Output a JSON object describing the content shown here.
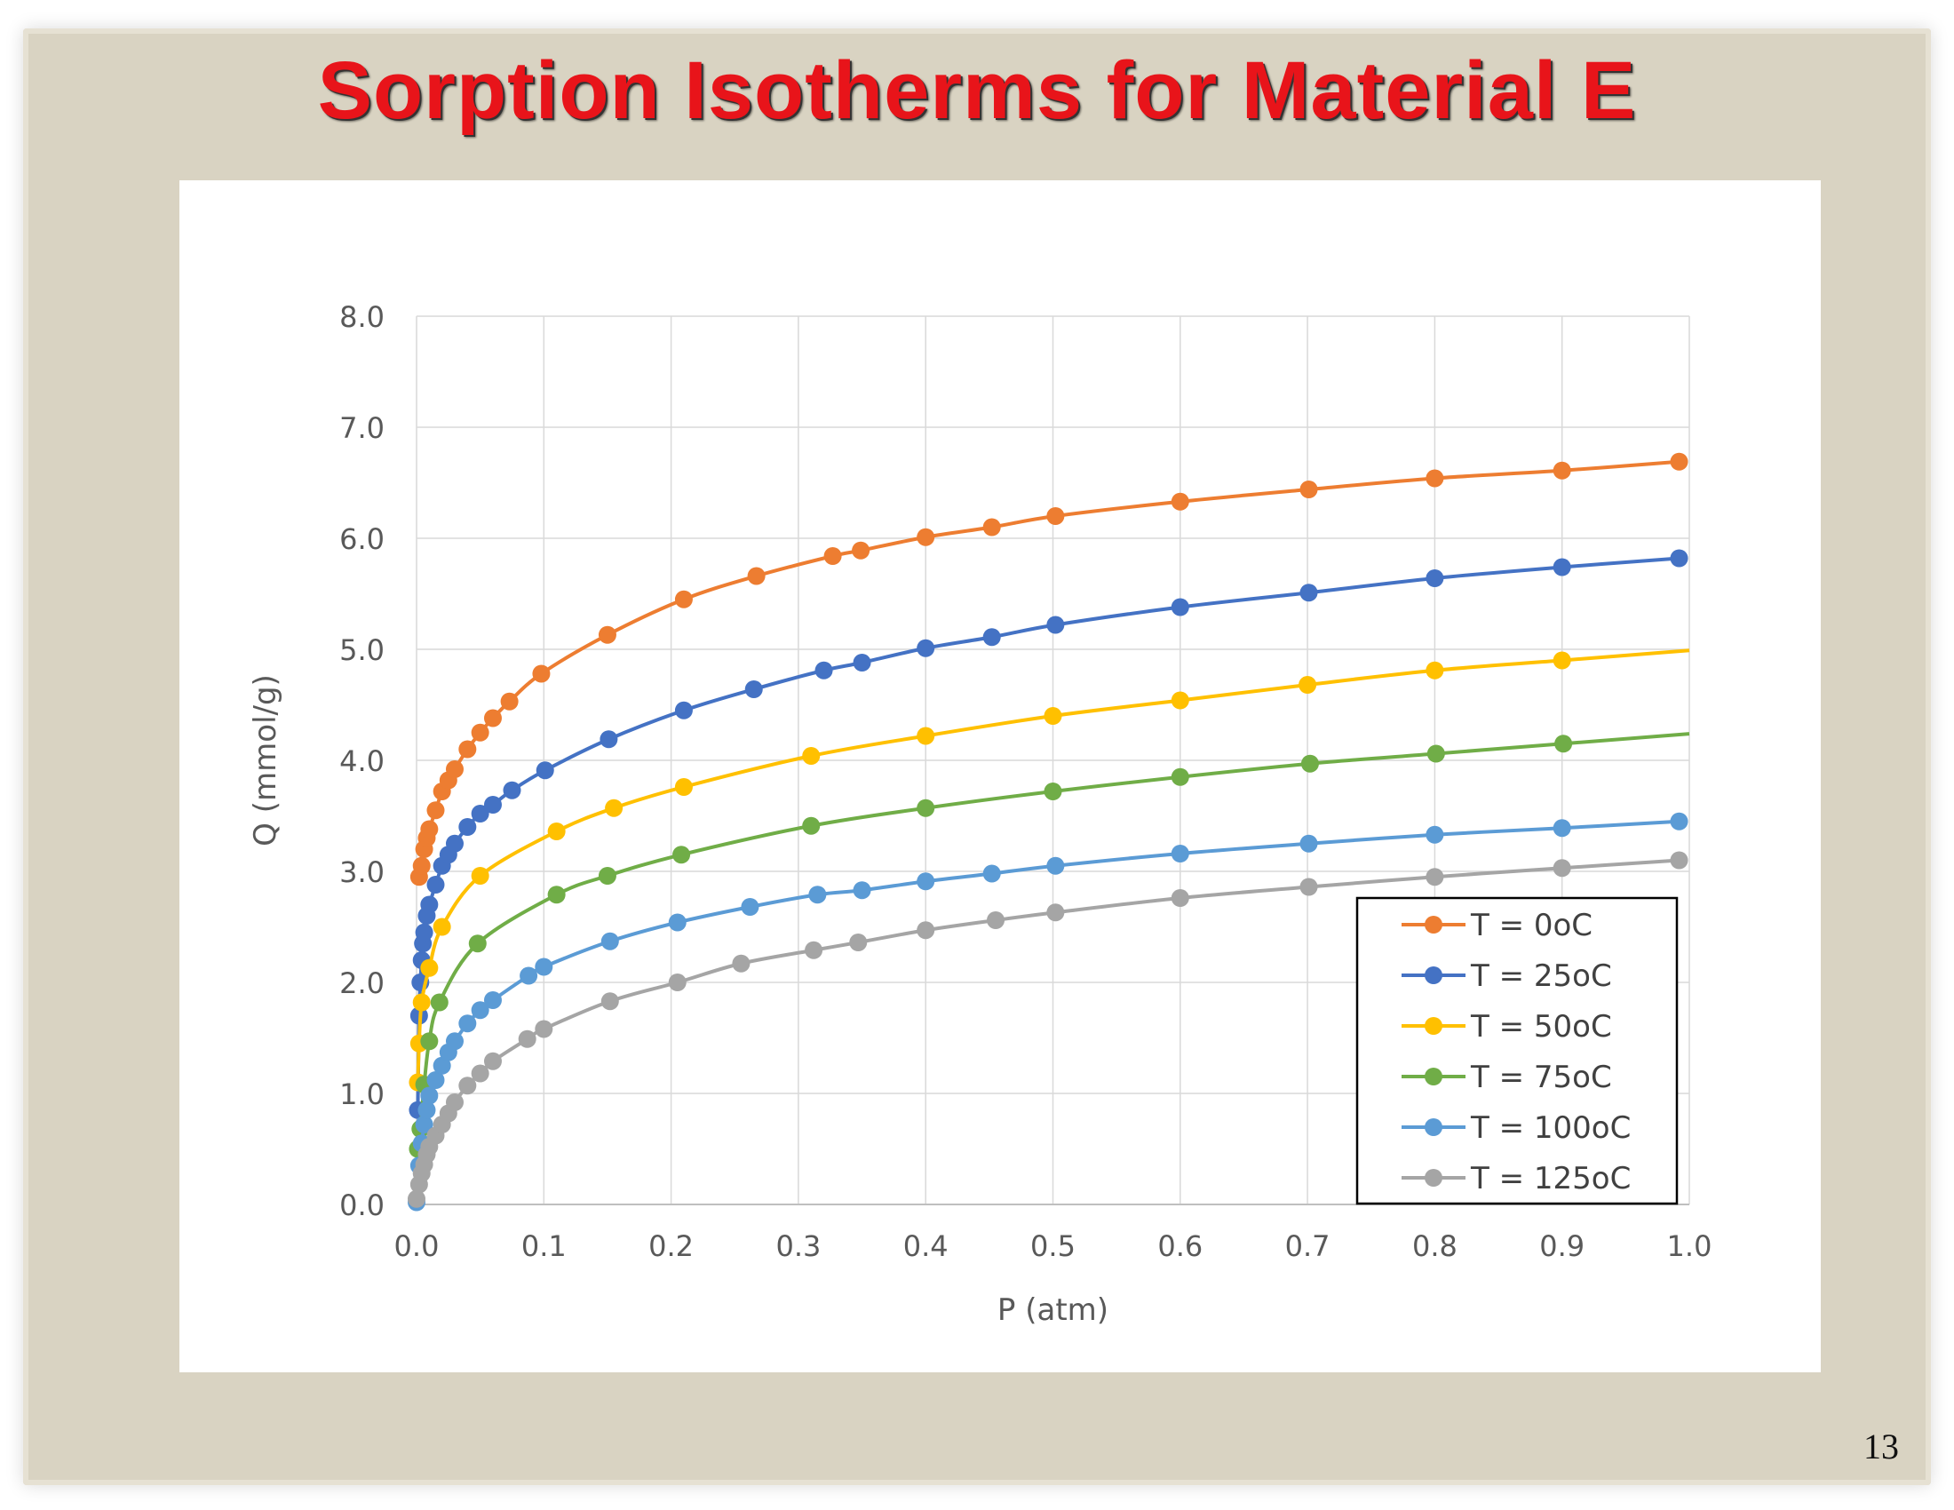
{
  "slide": {
    "title": "Sorption Isotherms for Material E",
    "page_number": "13"
  },
  "chart_data": {
    "type": "line",
    "title": "",
    "xlabel": "P (atm)",
    "ylabel": "Q (mmol/g)",
    "xlim": [
      0,
      1.0
    ],
    "ylim": [
      0,
      8.0
    ],
    "xticks": [
      "0.0",
      "0.1",
      "0.2",
      "0.3",
      "0.4",
      "0.5",
      "0.6",
      "0.7",
      "0.8",
      "0.9",
      "1.0"
    ],
    "yticks": [
      "0.0",
      "1.0",
      "2.0",
      "3.0",
      "4.0",
      "5.0",
      "6.0",
      "7.0",
      "8.0"
    ],
    "grid": true,
    "legend_position": "bottom-right",
    "series": [
      {
        "name": "T = 0oC",
        "color": "#ED7D31",
        "x": [
          0.002,
          0.004,
          0.006,
          0.008,
          0.01,
          0.015,
          0.02,
          0.025,
          0.03,
          0.04,
          0.05,
          0.06,
          0.073,
          0.098,
          0.15,
          0.21,
          0.267,
          0.327,
          0.349,
          0.4,
          0.452,
          0.502,
          0.6,
          0.701,
          0.8,
          0.9,
          0.992
        ],
        "y": [
          2.95,
          3.05,
          3.2,
          3.3,
          3.38,
          3.55,
          3.72,
          3.82,
          3.92,
          4.1,
          4.25,
          4.38,
          4.53,
          4.78,
          5.13,
          5.45,
          5.66,
          5.84,
          5.89,
          6.01,
          6.1,
          6.2,
          6.33,
          6.44,
          6.54,
          6.61,
          6.69
        ]
      },
      {
        "name": "T = 25oC",
        "color": "#4472C4",
        "x": [
          0.001,
          0.002,
          0.003,
          0.004,
          0.005,
          0.006,
          0.008,
          0.01,
          0.015,
          0.02,
          0.025,
          0.03,
          0.04,
          0.05,
          0.06,
          0.075,
          0.101,
          0.151,
          0.21,
          0.265,
          0.32,
          0.35,
          0.4,
          0.452,
          0.502,
          0.6,
          0.701,
          0.8,
          0.9,
          0.992
        ],
        "y": [
          0.85,
          1.7,
          2.0,
          2.2,
          2.35,
          2.45,
          2.6,
          2.7,
          2.88,
          3.05,
          3.15,
          3.25,
          3.4,
          3.52,
          3.6,
          3.73,
          3.91,
          4.19,
          4.45,
          4.64,
          4.81,
          4.88,
          5.01,
          5.11,
          5.22,
          5.38,
          5.51,
          5.64,
          5.74,
          5.82
        ]
      },
      {
        "name": "T = 50oC",
        "color": "#FFC000",
        "x": [
          0.001,
          0.002,
          0.004,
          0.01,
          0.02,
          0.05,
          0.11,
          0.155,
          0.21,
          0.31,
          0.4,
          0.5,
          0.6,
          0.7,
          0.8,
          0.9
        ],
        "y": [
          1.1,
          1.45,
          1.82,
          2.13,
          2.5,
          2.96,
          3.36,
          3.57,
          3.76,
          4.04,
          4.22,
          4.4,
          4.54,
          4.68,
          4.81,
          4.9
        ]
      },
      {
        "name": "T = 75oC",
        "color": "#70AD47",
        "x": [
          0.001,
          0.003,
          0.006,
          0.01,
          0.018,
          0.048,
          0.11,
          0.15,
          0.208,
          0.31,
          0.4,
          0.5,
          0.6,
          0.702,
          0.801,
          0.901
        ],
        "y": [
          0.5,
          0.68,
          1.08,
          1.47,
          1.82,
          2.35,
          2.79,
          2.96,
          3.15,
          3.41,
          3.57,
          3.72,
          3.85,
          3.97,
          4.06,
          4.15
        ]
      },
      {
        "name": "T = 100oC",
        "color": "#5B9BD5",
        "x": [
          0.0,
          0.002,
          0.004,
          0.006,
          0.008,
          0.01,
          0.015,
          0.02,
          0.025,
          0.03,
          0.04,
          0.05,
          0.06,
          0.088,
          0.1,
          0.152,
          0.205,
          0.262,
          0.315,
          0.35,
          0.4,
          0.452,
          0.502,
          0.6,
          0.701,
          0.8,
          0.9,
          0.992
        ],
        "y": [
          0.02,
          0.35,
          0.55,
          0.72,
          0.85,
          0.98,
          1.12,
          1.25,
          1.37,
          1.47,
          1.63,
          1.75,
          1.84,
          2.06,
          2.14,
          2.37,
          2.54,
          2.68,
          2.79,
          2.83,
          2.91,
          2.98,
          3.05,
          3.16,
          3.25,
          3.33,
          3.39,
          3.45
        ]
      },
      {
        "name": "T = 125oC",
        "color": "#A5A5A5",
        "x": [
          0.0,
          0.002,
          0.004,
          0.006,
          0.008,
          0.01,
          0.015,
          0.02,
          0.025,
          0.03,
          0.04,
          0.05,
          0.06,
          0.087,
          0.1,
          0.152,
          0.205,
          0.255,
          0.312,
          0.347,
          0.4,
          0.455,
          0.502,
          0.6,
          0.701,
          0.8,
          0.9,
          0.992
        ],
        "y": [
          0.05,
          0.18,
          0.28,
          0.36,
          0.45,
          0.52,
          0.62,
          0.72,
          0.82,
          0.92,
          1.07,
          1.18,
          1.29,
          1.49,
          1.58,
          1.83,
          2.0,
          2.17,
          2.29,
          2.36,
          2.47,
          2.56,
          2.63,
          2.76,
          2.86,
          2.95,
          3.03,
          3.1
        ]
      }
    ]
  }
}
